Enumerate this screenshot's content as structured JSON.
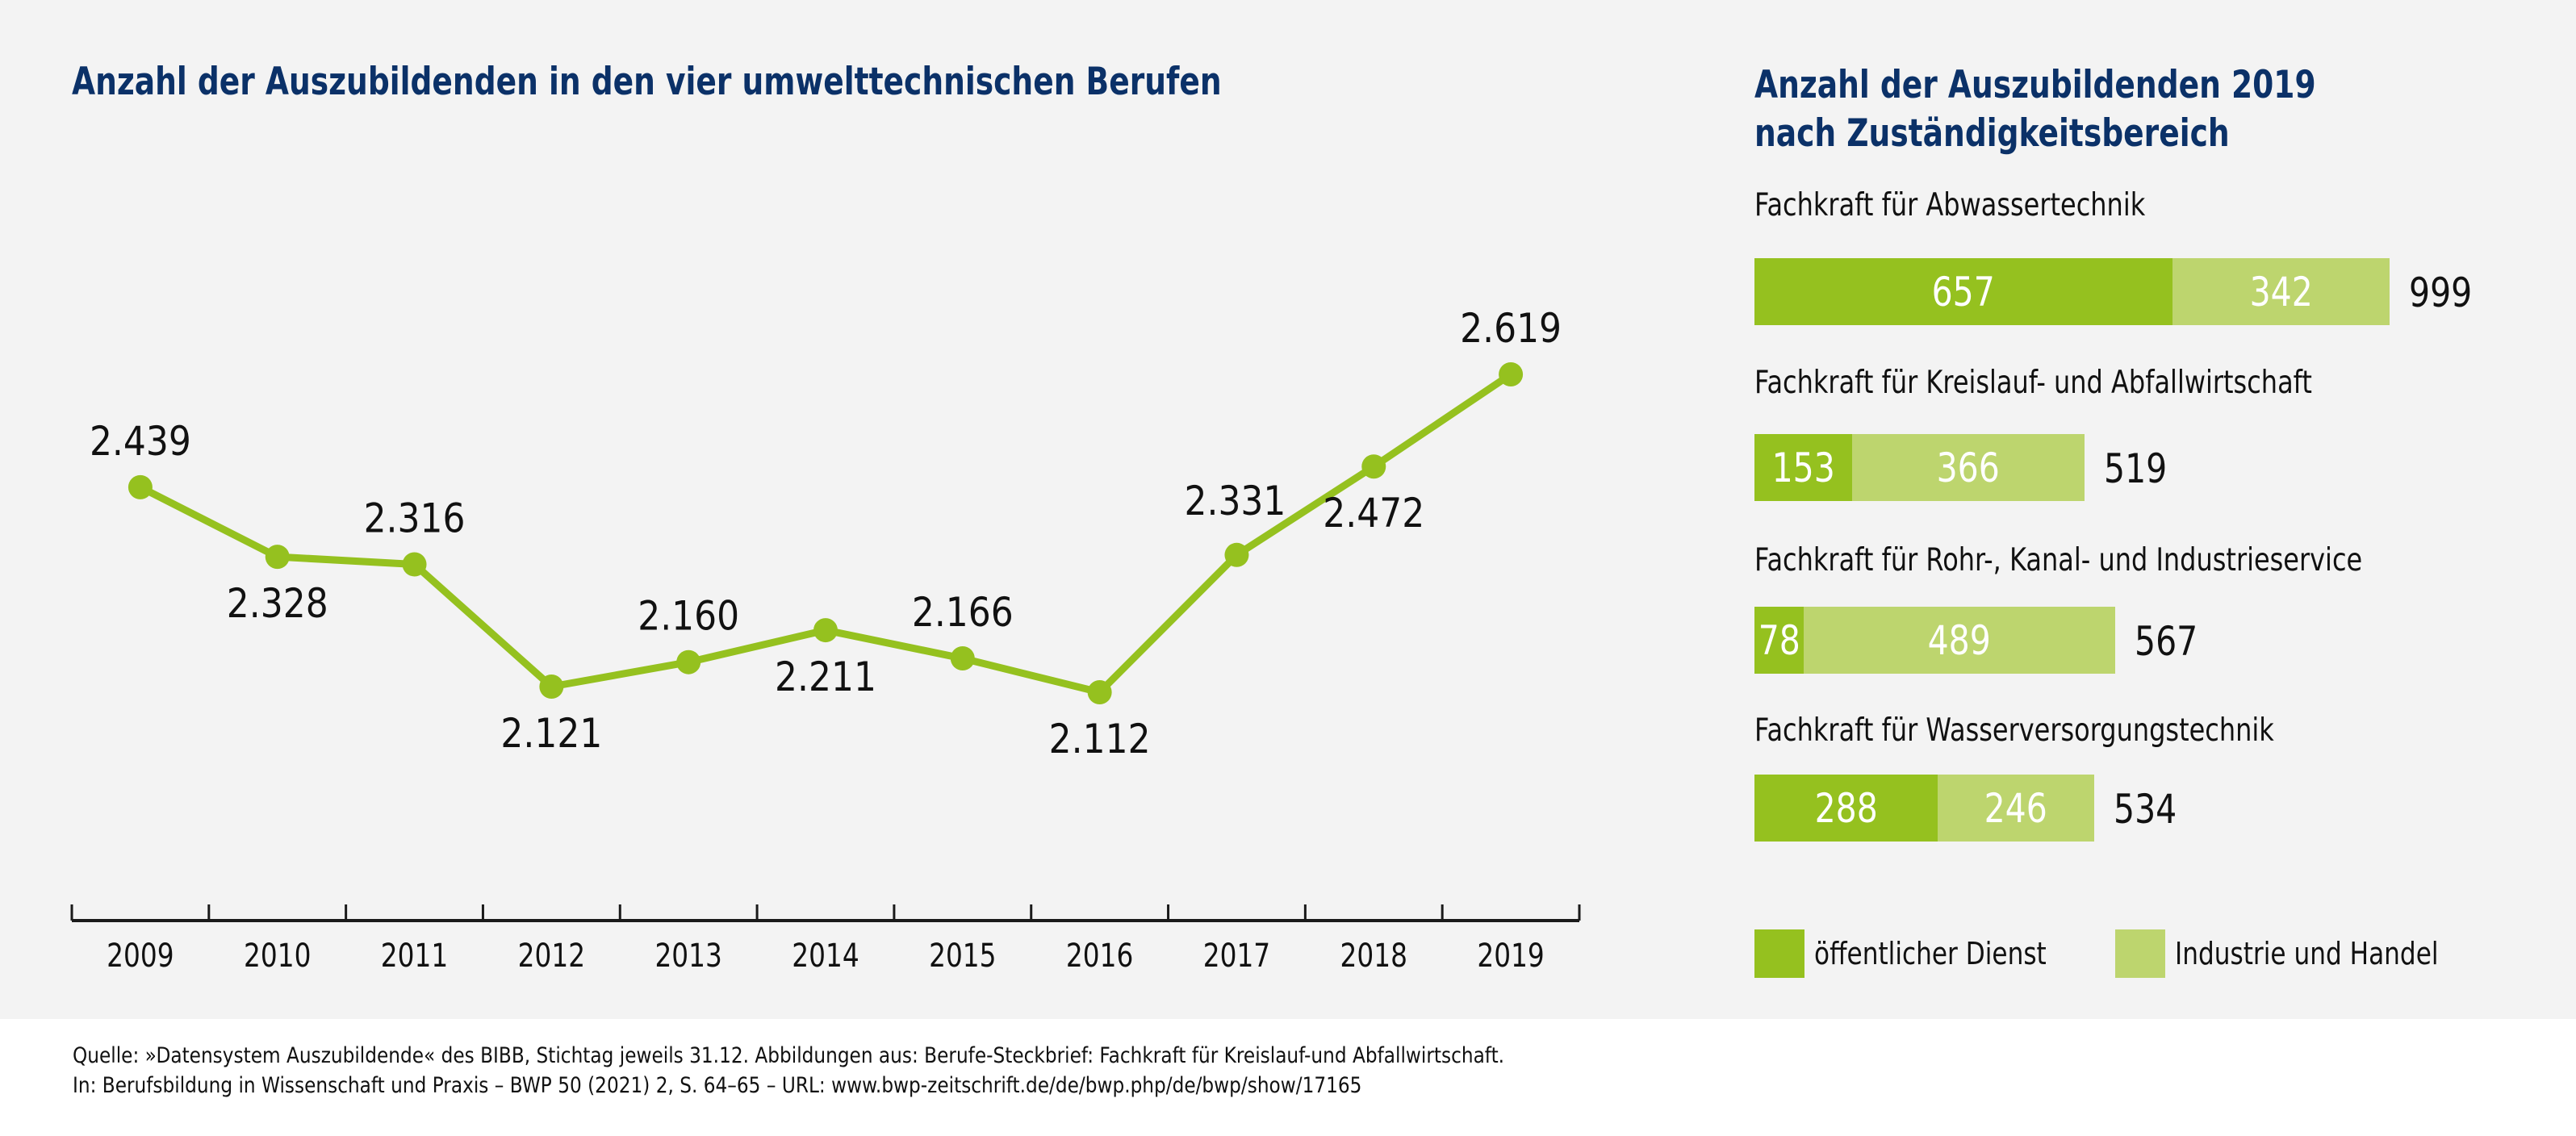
{
  "colors": {
    "title": "#0b3168",
    "line": "#95c11f",
    "public_service": "#95c11f",
    "industry_trade": "#bdd56e",
    "background": "#f3f3f3"
  },
  "chart_data": [
    {
      "type": "line",
      "title": "Anzahl der Auszubildenden in den vier umwelttechnischen Berufen",
      "xlabel": "",
      "ylabel": "",
      "grid": false,
      "y_axis_visible": false,
      "categories": [
        "2009",
        "2010",
        "2011",
        "2012",
        "2013",
        "2014",
        "2015",
        "2016",
        "2017",
        "2018",
        "2019"
      ],
      "series": [
        {
          "name": "Auszubildende",
          "values": [
            2439,
            2328,
            2316,
            2121,
            2160,
            2211,
            2166,
            2112,
            2331,
            2472,
            2619
          ],
          "labels": [
            "2.439",
            "2.328",
            "2.316",
            "2.121",
            "2.160",
            "2.211",
            "2.166",
            "2.112",
            "2.331",
            "2.472",
            "2.619"
          ],
          "label_placement": [
            "above",
            "below",
            "above",
            "below",
            "above",
            "below",
            "above",
            "below",
            "above-left",
            "below",
            "above"
          ]
        }
      ]
    },
    {
      "type": "bar",
      "orientation": "horizontal",
      "stacked": true,
      "title": "Anzahl der Auszubildenden 2019 nach Zuständigkeitsbereich",
      "title_lines": [
        "Anzahl der Auszubildenden 2019",
        "nach Zuständigkeitsbereich"
      ],
      "categories": [
        "Fachkraft für Abwassertechnik",
        "Fachkraft für Kreislauf- und Abfallwirtschaft",
        "Fachkraft für Rohr-, Kanal- und Industrieservice",
        "Fachkraft für Wasserversorgungstechnik"
      ],
      "series": [
        {
          "name": "öffentlicher Dienst",
          "values": [
            657,
            153,
            78,
            288
          ]
        },
        {
          "name": "Industrie und Handel",
          "values": [
            342,
            366,
            489,
            246
          ]
        }
      ],
      "totals": [
        999,
        519,
        567,
        534
      ],
      "legend": "bottom",
      "x_max": 999
    }
  ],
  "footer": {
    "line1": "Quelle: »Datensystem Auszubildende« des BIBB, Stichtag jeweils 31.12. Abbildungen aus: Berufe-Steckbrief: Fachkraft für Kreislauf-und Abfallwirtschaft.",
    "line2": "In: Berufsbildung in Wissenschaft und Praxis – BWP 50 (2021) 2, S. 64–65 – URL: www.bwp-zeitschrift.de/de/bwp.php/de/bwp/show/17165"
  }
}
